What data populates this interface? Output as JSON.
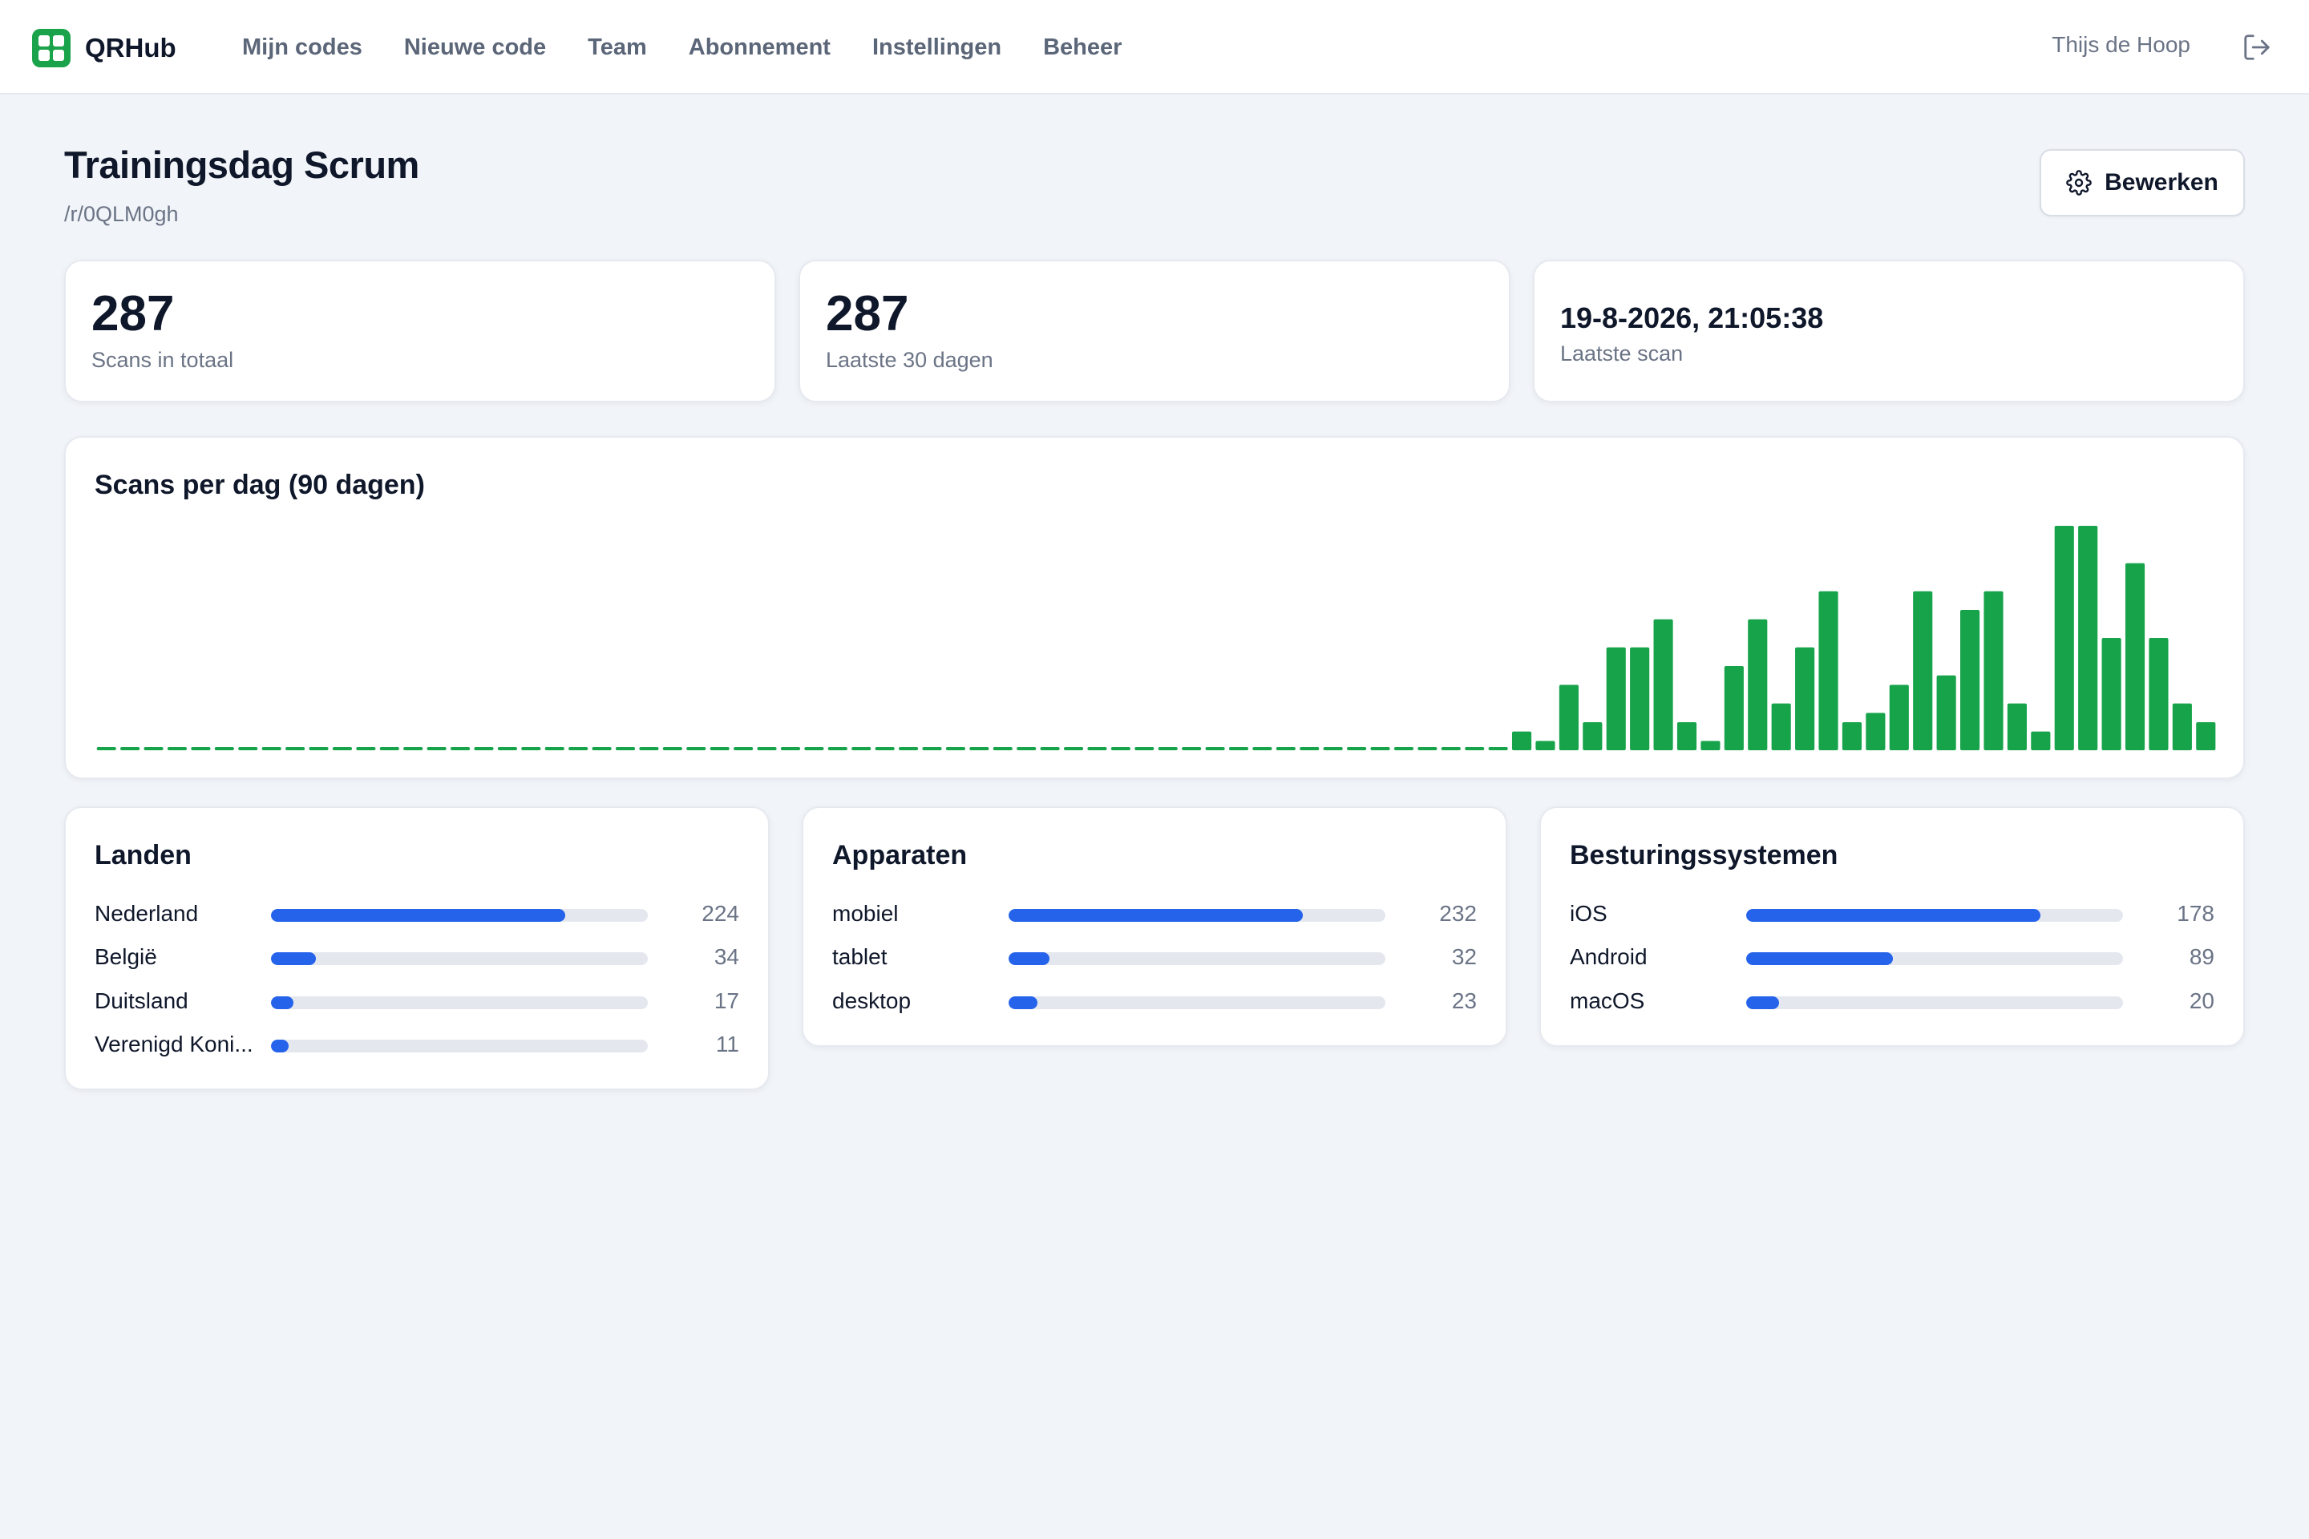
{
  "nav": {
    "brand": "QRHub",
    "links": [
      "Mijn codes",
      "Nieuwe code",
      "Team",
      "Abonnement",
      "Instellingen",
      "Beheer"
    ],
    "user": "Thijs de Hoop",
    "logout_icon": "logout-icon"
  },
  "header": {
    "title": "Trainingsdag Scrum",
    "path": "/r/0QLM0gh",
    "edit_label": "Bewerken",
    "edit_icon": "gear-icon"
  },
  "stats": [
    {
      "value": "287",
      "label": "Scans in totaal"
    },
    {
      "value": "287",
      "label": "Laatste 30 dagen"
    },
    {
      "value": "19-8-2026, 21:05:38",
      "label": "Laatste scan"
    }
  ],
  "chart": {
    "title": "Scans per dag (90 dagen)"
  },
  "chart_data": {
    "type": "bar",
    "title": "Scans per dag (90 dagen)",
    "bar_color": "#16a34a",
    "ylim": [
      0,
      24
    ],
    "values": [
      0,
      0,
      0,
      0,
      0,
      0,
      0,
      0,
      0,
      0,
      0,
      0,
      0,
      0,
      0,
      0,
      0,
      0,
      0,
      0,
      0,
      0,
      0,
      0,
      0,
      0,
      0,
      0,
      0,
      0,
      0,
      0,
      0,
      0,
      0,
      0,
      0,
      0,
      0,
      0,
      0,
      0,
      0,
      0,
      0,
      0,
      0,
      0,
      0,
      0,
      0,
      0,
      0,
      0,
      0,
      0,
      0,
      0,
      0,
      0,
      2,
      1,
      7,
      3,
      11,
      11,
      14,
      3,
      1,
      9,
      14,
      5,
      11,
      17,
      3,
      4,
      7,
      17,
      8,
      15,
      17,
      5,
      2,
      24,
      24,
      12,
      20,
      12,
      5,
      3
    ]
  },
  "breakdowns": {
    "countries": {
      "title": "Landen",
      "max": 224,
      "rows": [
        {
          "label": "Nederland",
          "value": 224
        },
        {
          "label": "België",
          "value": 34
        },
        {
          "label": "Duitsland",
          "value": 17
        },
        {
          "label": "Verenigd Koni...",
          "value": 11
        }
      ]
    },
    "devices": {
      "title": "Apparaten",
      "max": 232,
      "rows": [
        {
          "label": "mobiel",
          "value": 232
        },
        {
          "label": "tablet",
          "value": 32
        },
        {
          "label": "desktop",
          "value": 23
        }
      ]
    },
    "os": {
      "title": "Besturingssystemen",
      "max": 178,
      "rows": [
        {
          "label": "iOS",
          "value": 178
        },
        {
          "label": "Android",
          "value": 89
        },
        {
          "label": "macOS",
          "value": 20
        }
      ]
    }
  },
  "colors": {
    "accent": "#1aa34a",
    "bar_fill": "#2563eb",
    "track": "#e4e8ee"
  }
}
